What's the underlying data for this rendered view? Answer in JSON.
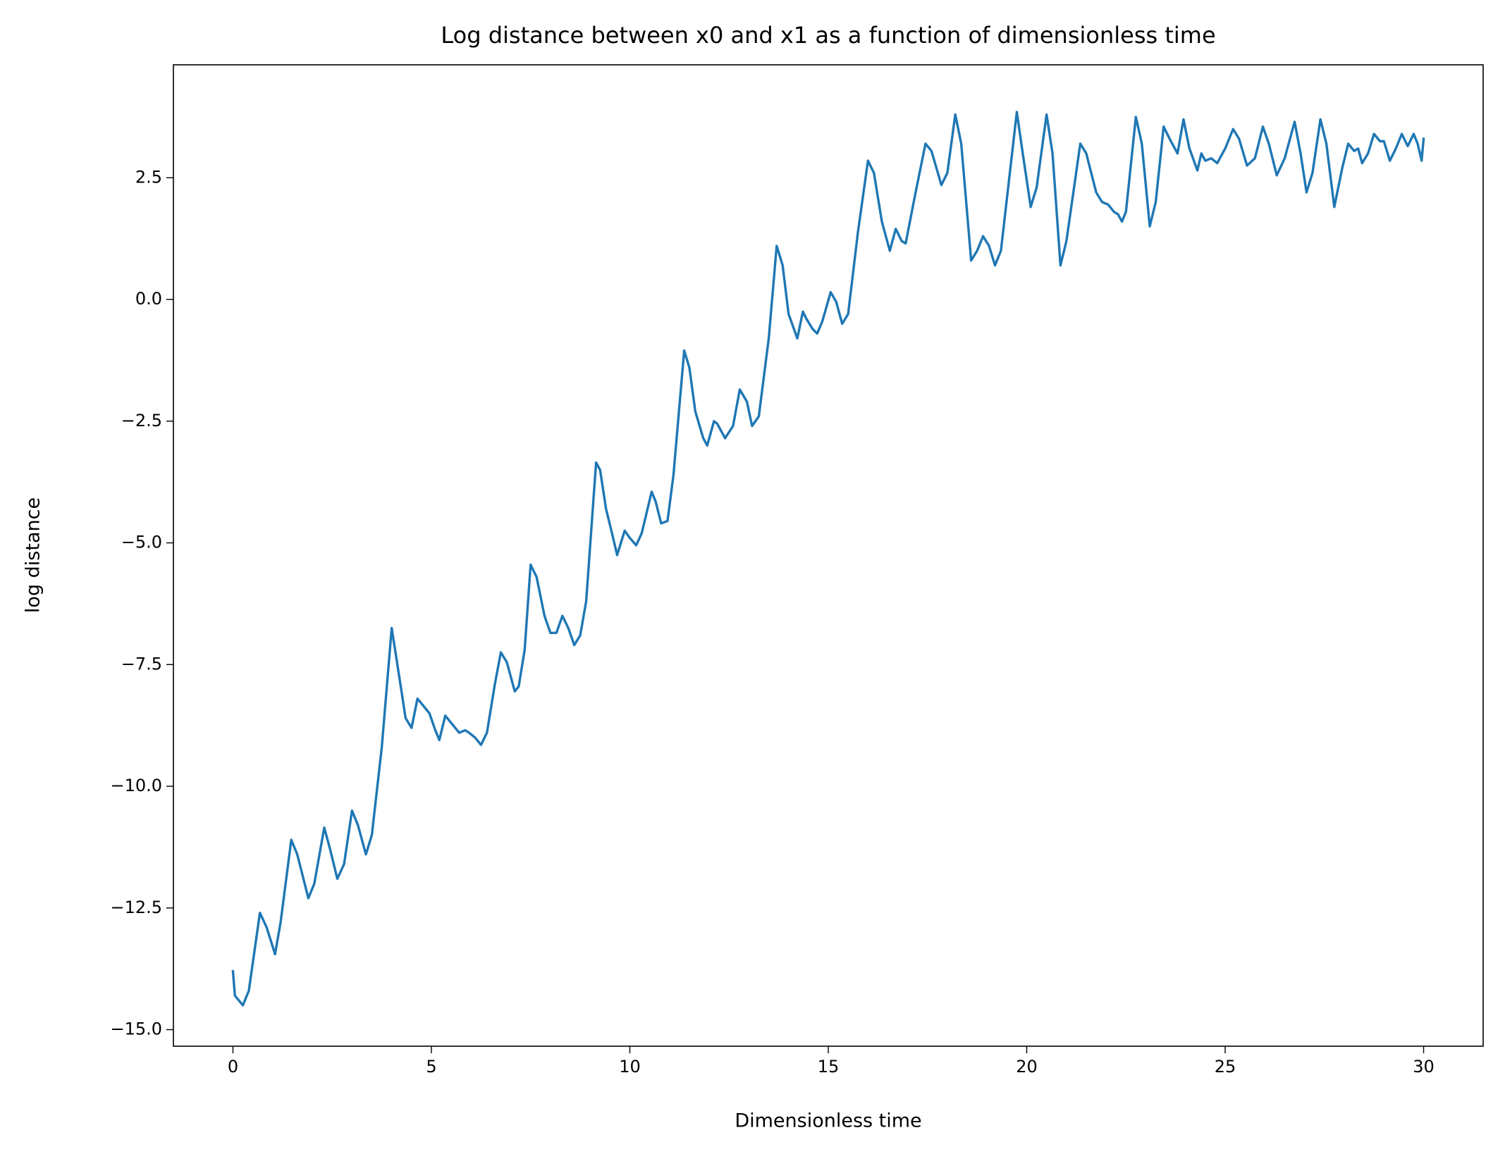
{
  "chart_data": {
    "type": "line",
    "title": "Log distance between x0 and x1 as a function of dimensionless time",
    "xlabel": "Dimensionless time",
    "ylabel": "log distance",
    "color": "#1f77b4",
    "xlim": [
      -1.5,
      31.5
    ],
    "xticks": [
      0,
      5,
      10,
      15,
      20,
      25,
      30
    ],
    "ylim": [
      -15.34,
      4.82
    ],
    "yticks": [
      {
        "value": -15,
        "label": "−15.0"
      },
      {
        "value": -12.5,
        "label": "−12.5"
      },
      {
        "value": -10,
        "label": "−10.0"
      },
      {
        "value": -7.5,
        "label": "−7.5"
      },
      {
        "value": -5,
        "label": "−5.0"
      },
      {
        "value": -2.5,
        "label": "−2.5"
      },
      {
        "value": 0,
        "label": "0.0"
      },
      2.5
    ],
    "grid": false,
    "x": [
      0,
      0.05,
      0.25,
      0.4,
      0.68,
      0.85,
      1.06,
      1.2,
      1.47,
      1.62,
      1.9,
      2.05,
      2.3,
      2.45,
      2.63,
      2.8,
      3.0,
      3.15,
      3.35,
      3.5,
      3.75,
      4.0,
      4.2,
      4.35,
      4.5,
      4.65,
      4.8,
      4.95,
      5.1,
      5.2,
      5.35,
      5.5,
      5.7,
      5.85,
      5.95,
      6.1,
      6.25,
      6.4,
      6.6,
      6.75,
      6.9,
      7.1,
      7.2,
      7.35,
      7.5,
      7.65,
      7.85,
      8.0,
      8.15,
      8.3,
      8.45,
      8.6,
      8.75,
      8.9,
      9.15,
      9.25,
      9.4,
      9.55,
      9.68,
      9.87,
      10.0,
      10.16,
      10.3,
      10.55,
      10.65,
      10.79,
      10.95,
      11.1,
      11.37,
      11.5,
      11.65,
      11.85,
      11.95,
      12.12,
      12.2,
      12.4,
      12.6,
      12.77,
      12.95,
      13.08,
      13.25,
      13.5,
      13.7,
      13.85,
      14.0,
      14.22,
      14.36,
      14.45,
      14.6,
      14.72,
      14.85,
      15.06,
      15.2,
      15.35,
      15.5,
      15.75,
      16.0,
      16.15,
      16.35,
      16.55,
      16.7,
      16.85,
      16.95,
      17.2,
      17.45,
      17.6,
      17.85,
      18.0,
      18.2,
      18.35,
      18.6,
      18.75,
      18.9,
      19.05,
      19.2,
      19.35,
      19.75,
      19.9,
      20.1,
      20.25,
      20.5,
      20.65,
      20.85,
      21.0,
      21.35,
      21.5,
      21.75,
      21.9,
      22.05,
      22.2,
      22.3,
      22.4,
      22.5,
      22.75,
      22.9,
      23.1,
      23.25,
      23.45,
      23.6,
      23.8,
      23.95,
      24.1,
      24.3,
      24.4,
      24.5,
      24.65,
      24.8,
      25.0,
      25.2,
      25.35,
      25.55,
      25.75,
      25.95,
      26.1,
      26.3,
      26.5,
      26.75,
      26.9,
      27.05,
      27.2,
      27.4,
      27.55,
      27.75,
      27.95,
      28.1,
      28.25,
      28.35,
      28.45,
      28.6,
      28.75,
      28.9,
      29.0,
      29.15,
      29.3,
      29.45,
      29.6,
      29.75,
      29.85,
      29.95,
      30.0
    ],
    "values": [
      -13.8,
      -14.3,
      -14.5,
      -14.2,
      -12.6,
      -12.9,
      -13.45,
      -12.8,
      -11.1,
      -11.4,
      -12.3,
      -12.0,
      -10.85,
      -11.3,
      -11.9,
      -11.6,
      -10.5,
      -10.8,
      -11.4,
      -11.0,
      -9.2,
      -6.75,
      -7.8,
      -8.6,
      -8.8,
      -8.2,
      -8.35,
      -8.5,
      -8.85,
      -9.05,
      -8.55,
      -8.7,
      -8.9,
      -8.85,
      -8.9,
      -9.0,
      -9.15,
      -8.9,
      -7.9,
      -7.25,
      -7.45,
      -8.05,
      -7.95,
      -7.2,
      -5.45,
      -5.7,
      -6.5,
      -6.85,
      -6.85,
      -6.5,
      -6.75,
      -7.1,
      -6.9,
      -6.2,
      -3.35,
      -3.5,
      -4.3,
      -4.8,
      -5.25,
      -4.75,
      -4.9,
      -5.05,
      -4.8,
      -3.95,
      -4.15,
      -4.6,
      -4.55,
      -3.6,
      -1.05,
      -1.4,
      -2.3,
      -2.85,
      -3.0,
      -2.5,
      -2.55,
      -2.85,
      -2.6,
      -1.85,
      -2.1,
      -2.6,
      -2.4,
      -0.8,
      1.1,
      0.7,
      -0.3,
      -0.8,
      -0.25,
      -0.4,
      -0.6,
      -0.7,
      -0.45,
      0.15,
      -0.05,
      -0.5,
      -0.3,
      1.4,
      2.85,
      2.6,
      1.6,
      1.0,
      1.45,
      1.2,
      1.15,
      2.2,
      3.2,
      3.05,
      2.35,
      2.6,
      3.8,
      3.2,
      0.8,
      1.0,
      1.3,
      1.1,
      0.7,
      1.0,
      3.85,
      3.0,
      1.9,
      2.3,
      3.8,
      3.0,
      0.7,
      1.2,
      3.2,
      3.0,
      2.2,
      2.0,
      1.95,
      1.8,
      1.75,
      1.6,
      1.8,
      3.75,
      3.2,
      1.5,
      2.0,
      3.55,
      3.3,
      3.0,
      3.7,
      3.1,
      2.65,
      3.0,
      2.85,
      2.9,
      2.8,
      3.1,
      3.5,
      3.3,
      2.75,
      2.9,
      3.55,
      3.2,
      2.55,
      2.9,
      3.65,
      3.0,
      2.2,
      2.6,
      3.7,
      3.2,
      1.9,
      2.7,
      3.2,
      3.05,
      3.1,
      2.8,
      3.0,
      3.4,
      3.25,
      3.25,
      2.85,
      3.1,
      3.4,
      3.15,
      3.4,
      3.2,
      2.85,
      3.3
    ]
  }
}
